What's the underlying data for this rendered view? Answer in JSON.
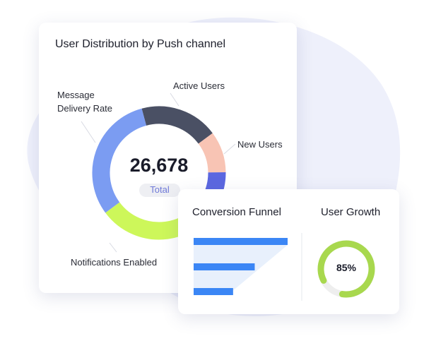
{
  "distribution_card": {
    "title": "User Distribution by Push channel",
    "total_value": "26,678",
    "total_label": "Total",
    "segments": [
      {
        "label": "Active Users",
        "color": "#4a5064",
        "share": 0.19
      },
      {
        "label": "New Users",
        "color": "#f8c4b4",
        "share": 0.1
      },
      {
        "label": "",
        "color": "#5b67e0",
        "share": 0.06
      },
      {
        "label": "Notifications Enabled",
        "color": "#cdf75a",
        "share": 0.34
      },
      {
        "label": "Message Delivery Rate",
        "color": "#7b9cf2",
        "share": 0.31
      }
    ],
    "labels": {
      "active_users": "Active Users",
      "new_users": "New Users",
      "message_line1": "Message",
      "message_line2": "Delivery Rate",
      "notifications": "Notifications Enabled"
    }
  },
  "funnel_card": {
    "funnel_title": "Conversion Funnel",
    "funnel_levels": [
      1.0,
      0.65,
      0.42
    ],
    "funnel_color": "#3b86f5",
    "growth_title": "User Growth",
    "growth_value": "85%",
    "growth_fraction": 0.85,
    "growth_color": "#a8d84e"
  }
}
